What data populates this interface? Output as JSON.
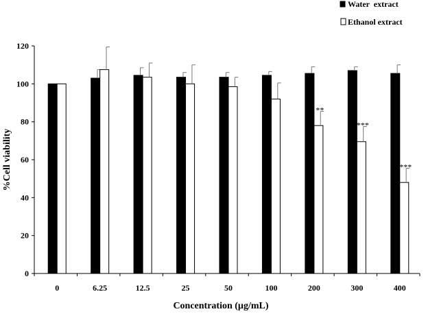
{
  "chart_data": {
    "type": "bar",
    "title": "",
    "xlabel": "Concentration (µg/mL)",
    "ylabel": "%Cell viability",
    "ylim": [
      0,
      120
    ],
    "yticks": [
      "0",
      "20",
      "40",
      "60",
      "80",
      "100",
      "120"
    ],
    "categories": [
      "0",
      "6.25",
      "12.5",
      "25",
      "50",
      "100",
      "200",
      "300",
      "400"
    ],
    "legend_position": "top-right",
    "grid": false,
    "series": [
      {
        "name": "Water  extract",
        "color": "#000000",
        "values": [
          100,
          103,
          104.5,
          103.5,
          103.5,
          104.5,
          105.5,
          107,
          105.5
        ],
        "errors": [
          0,
          4.5,
          4,
          2.5,
          2.5,
          2,
          3.5,
          2,
          4.5
        ]
      },
      {
        "name": "Ethanol extract",
        "color": "#ffffff",
        "values": [
          100,
          107.5,
          103.5,
          100,
          98.5,
          92,
          78,
          69.5,
          48
        ],
        "errors": [
          0,
          12,
          7.5,
          10,
          5,
          8.5,
          7.5,
          8,
          7.5
        ]
      }
    ],
    "annotations": [
      {
        "category": "200",
        "series": "Ethanol extract",
        "text": "**"
      },
      {
        "category": "300",
        "series": "Ethanol extract",
        "text": "***"
      },
      {
        "category": "400",
        "series": "Ethanol extract",
        "text": "***"
      }
    ]
  }
}
